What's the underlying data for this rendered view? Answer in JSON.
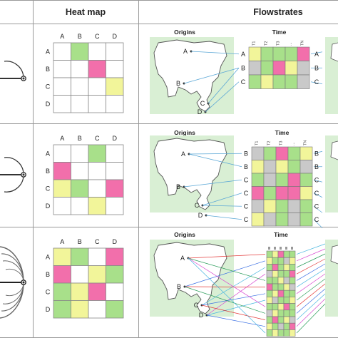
{
  "header": {
    "heatmap": "Heat map",
    "flowstrates": "Flowstrates"
  },
  "colors": {
    "green": "#a8e08a",
    "pink": "#f26fab",
    "yellow": "#f2f59a",
    "gray": "#c9c9c9",
    "map_bg": "#d9efd4",
    "grid_line": "#888888",
    "arc": "#555555"
  },
  "heatmap_axis": [
    "A",
    "B",
    "C",
    "D"
  ],
  "map_node_labels": [
    "A",
    "B",
    "C",
    "D"
  ],
  "origins_label": "Origins",
  "time_label": "Time",
  "rows": [
    {
      "heat_cells": [
        [
          "",
          "green",
          "",
          ""
        ],
        [
          "",
          "",
          "pink",
          ""
        ],
        [
          "",
          "",
          "",
          "yellow"
        ],
        [
          "",
          "",
          "",
          ""
        ]
      ],
      "time_columns": [
        "T1",
        "T2",
        "T3",
        "...",
        "TN"
      ],
      "time_row_labels": [
        "A",
        "B",
        "C"
      ],
      "time_cells": [
        [
          "yellow",
          "green",
          "green",
          "green",
          "pink"
        ],
        [
          "gray",
          "green",
          "pink",
          "yellow",
          "gray"
        ],
        [
          "green",
          "yellow",
          "green",
          "green",
          "gray"
        ]
      ]
    },
    {
      "heat_cells": [
        [
          "",
          "",
          "green",
          ""
        ],
        [
          "pink",
          "",
          "",
          ""
        ],
        [
          "yellow",
          "green",
          "",
          "pink"
        ],
        [
          "",
          "",
          "yellow",
          ""
        ]
      ],
      "time_columns": [
        "T1",
        "T2",
        "T3",
        "...",
        "TN"
      ],
      "time_row_labels": [
        "B",
        "B",
        "C",
        "C",
        "C",
        "C"
      ],
      "time_cells": [
        [
          "gray",
          "green",
          "pink",
          "green",
          "yellow"
        ],
        [
          "yellow",
          "gray",
          "yellow",
          "green",
          "gray"
        ],
        [
          "green",
          "gray",
          "green",
          "pink",
          "green"
        ],
        [
          "pink",
          "green",
          "pink",
          "pink",
          "yellow"
        ],
        [
          "gray",
          "yellow",
          "green",
          "gray",
          "green"
        ],
        [
          "yellow",
          "gray",
          "green",
          "gray",
          "green"
        ]
      ]
    },
    {
      "heat_cells": [
        [
          "yellow",
          "green",
          "",
          "pink"
        ],
        [
          "pink",
          "",
          "yellow",
          "green"
        ],
        [
          "green",
          "yellow",
          "pink",
          ""
        ],
        [
          "green",
          "yellow",
          "",
          "green"
        ]
      ],
      "time_columns": [
        "",
        "",
        "",
        "",
        ""
      ],
      "time_row_labels": [],
      "time_cells": [
        [
          "green",
          "yellow",
          "pink",
          "green",
          "green"
        ],
        [
          "yellow",
          "green",
          "green",
          "gray",
          "yellow"
        ],
        [
          "green",
          "pink",
          "green",
          "yellow",
          "green"
        ],
        [
          "gray",
          "yellow",
          "green",
          "green",
          "pink"
        ],
        [
          "green",
          "green",
          "yellow",
          "gray",
          "green"
        ],
        [
          "pink",
          "green",
          "green",
          "yellow",
          "gray"
        ],
        [
          "green",
          "yellow",
          "pink",
          "green",
          "green"
        ],
        [
          "yellow",
          "gray",
          "green",
          "green",
          "yellow"
        ],
        [
          "green",
          "green",
          "yellow",
          "pink",
          "green"
        ],
        [
          "gray",
          "yellow",
          "green",
          "green",
          "green"
        ],
        [
          "green",
          "pink",
          "green",
          "yellow",
          "gray"
        ],
        [
          "yellow",
          "green",
          "gray",
          "green",
          "pink"
        ],
        [
          "green",
          "yellow",
          "green",
          "green",
          "yellow"
        ]
      ]
    }
  ]
}
